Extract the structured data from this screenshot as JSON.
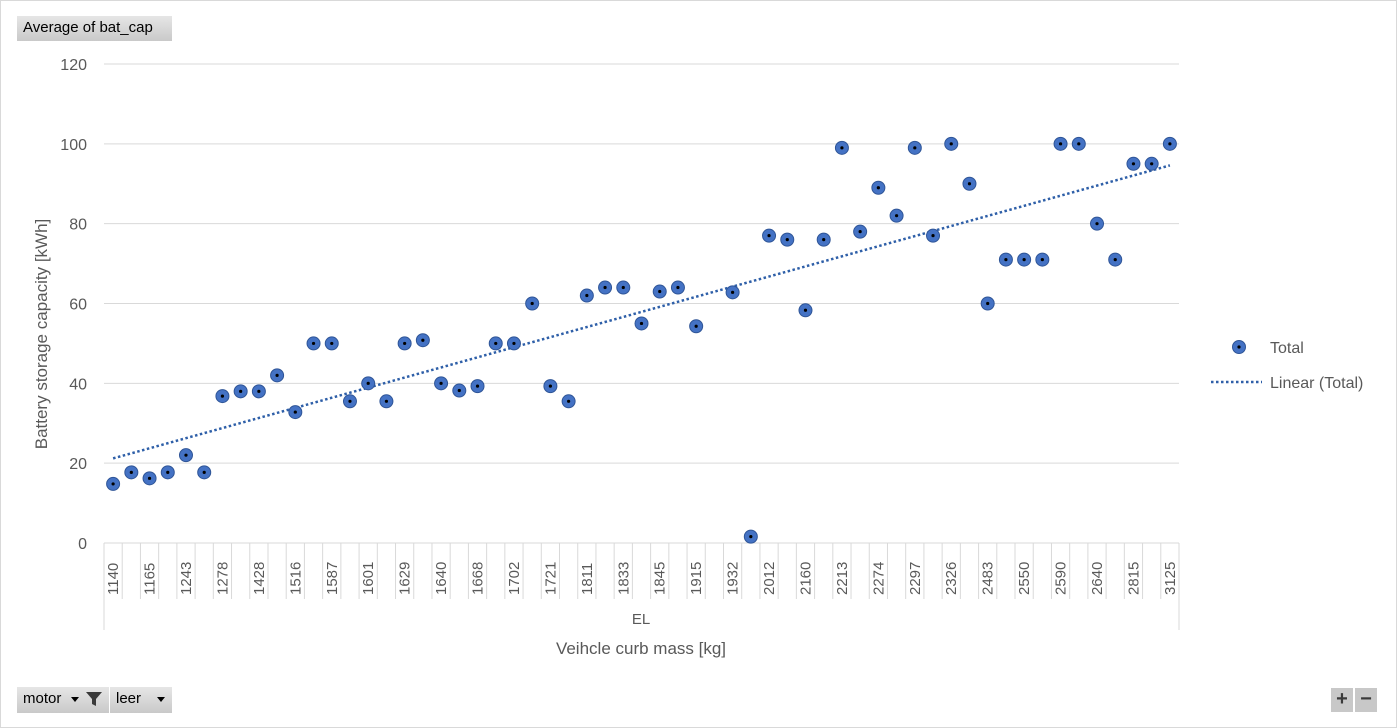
{
  "pivot": {
    "values_field_label": "Average of bat_cap",
    "filter_field_label": "motor",
    "axis_field_label": "leer",
    "zoom_in_label": "+",
    "zoom_out_label": "−"
  },
  "chart_data": {
    "type": "scatter",
    "title": "",
    "xlabel": "Veihcle curb mass [kg]",
    "ylabel": "Battery storage capacity [kWh]",
    "group_label": "EL",
    "ylim": [
      0,
      120
    ],
    "yticks": [
      0,
      20,
      40,
      60,
      80,
      100,
      120
    ],
    "grid": true,
    "legend_position": "right",
    "categories": [
      "1140",
      "",
      "1165",
      "",
      "1243",
      "",
      "1278",
      "",
      "1428",
      "",
      "1516",
      "",
      "1587",
      "",
      "1601",
      "",
      "1629",
      "",
      "1640",
      "",
      "1668",
      "",
      "1702",
      "",
      "1721",
      "",
      "1811",
      "",
      "1833",
      "",
      "1845",
      "",
      "1915",
      "",
      "1932",
      "",
      "2012",
      "",
      "2160",
      "",
      "2213",
      "",
      "2274",
      "",
      "2297",
      "",
      "2326",
      "",
      "2483",
      "",
      "2550",
      "",
      "2590",
      "",
      "2640",
      "",
      "2815",
      "",
      "3125"
    ],
    "series": [
      {
        "name": "Total",
        "color": "#4472c4",
        "values": [
          14.8,
          17.7,
          16.2,
          17.7,
          22,
          17.7,
          36.8,
          38,
          38,
          42,
          32.8,
          50,
          50,
          35.5,
          40,
          35.5,
          50,
          50.8,
          40,
          38.2,
          39.3,
          50,
          50,
          60,
          39.3,
          35.5,
          62,
          64,
          64,
          55,
          63,
          64,
          54.3,
          null,
          62.8,
          1.6,
          77,
          76,
          58.3,
          76,
          99,
          78,
          89,
          82,
          99,
          77,
          100,
          90,
          60,
          71,
          71,
          71,
          100,
          100,
          80,
          71,
          95,
          95,
          100
        ]
      }
    ],
    "trendline": {
      "name": "Linear (Total)",
      "type": "linear",
      "color": "#2e5fa8",
      "start": 21.2,
      "end": 94.6
    }
  }
}
